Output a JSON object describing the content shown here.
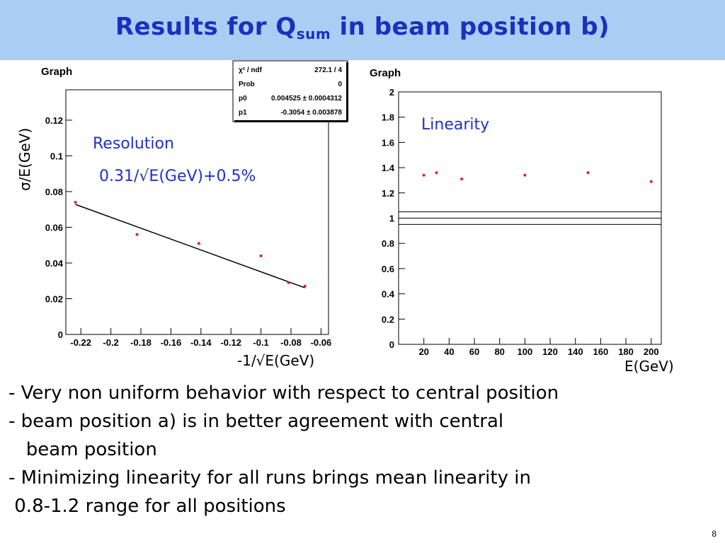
{
  "slide": {
    "title_main": "Results for Q",
    "title_sub": "sum",
    "title_tail": " in beam position b)",
    "bullets": [
      "- Very non uniform behavior with respect to central position",
      "- beam position a) is in better agreement with central",
      "   beam position",
      "- Minimizing linearity for all runs brings mean linearity in",
      " 0.8-1.2 range for all positions"
    ],
    "page_number": "8"
  },
  "colors": {
    "title_bar": "#a9cdf3",
    "title_text": "#1c2fbf",
    "annotation": "#2030c8",
    "points": "#e0201a"
  },
  "stats_box": {
    "rows": [
      {
        "label": "χ² / ndf",
        "value": "272.1 / 4"
      },
      {
        "label": "Prob",
        "value": "0"
      },
      {
        "label": "p0",
        "value": "0.004525 ± 0.0004312"
      },
      {
        "label": "p1",
        "value": "-0.3054 ± 0.003878"
      }
    ]
  },
  "chart_data": [
    {
      "type": "scatter",
      "title": "Graph",
      "annotation": "Resolution",
      "formula": "0.31/√E(GeV)+0.5%",
      "xlabel": "-1/√E(GeV)",
      "ylabel": "σ/E(GeV)",
      "xlim": [
        -0.23,
        -0.055
      ],
      "ylim": [
        0,
        0.137
      ],
      "xticks": [
        -0.22,
        -0.2,
        -0.18,
        -0.16,
        -0.14,
        -0.12,
        -0.1,
        -0.08,
        -0.06
      ],
      "xtick_labels": [
        "-0.22",
        "-0.2",
        "-0.18",
        "-0.16",
        "-0.14",
        "-0.12",
        "-0.1",
        "-0.08",
        "-0.06"
      ],
      "yticks": [
        0,
        0.02,
        0.04,
        0.06,
        0.08,
        0.1,
        0.12
      ],
      "ytick_labels": [
        "0",
        "0.02",
        "0.04",
        "0.06",
        "0.08",
        "0.1",
        "0.12"
      ],
      "x": [
        -0.2236,
        -0.1826,
        -0.1414,
        -0.1,
        -0.0816,
        -0.0707
      ],
      "y": [
        0.074,
        0.056,
        0.051,
        0.044,
        0.029,
        0.027
      ],
      "fit": {
        "p0": 0.004525,
        "p1": -0.3054,
        "x_range": [
          -0.2236,
          -0.0707
        ]
      },
      "grid": false
    },
    {
      "type": "scatter",
      "title": "Graph",
      "annotation": "Linearity",
      "xlabel": "E(GeV)",
      "ylabel": "",
      "xlim": [
        0,
        208
      ],
      "ylim": [
        0,
        2
      ],
      "xticks": [
        20,
        40,
        60,
        80,
        100,
        120,
        140,
        160,
        180,
        200
      ],
      "xtick_labels": [
        "20",
        "40",
        "60",
        "80",
        "100",
        "120",
        "140",
        "160",
        "180",
        "200"
      ],
      "yticks": [
        0,
        0.2,
        0.4,
        0.6,
        0.8,
        1,
        1.2,
        1.4,
        1.6,
        1.8,
        2
      ],
      "ytick_labels": [
        "0",
        "0.2",
        "0.4",
        "0.6",
        "0.8",
        "1",
        "1.2",
        "1.4",
        "1.6",
        "1.8",
        "2"
      ],
      "x": [
        20,
        30,
        50,
        100,
        150,
        200
      ],
      "y": [
        1.34,
        1.36,
        1.31,
        1.34,
        1.36,
        1.29
      ],
      "reference_lines": [
        0.95,
        1.0,
        1.05
      ],
      "grid": false
    }
  ]
}
